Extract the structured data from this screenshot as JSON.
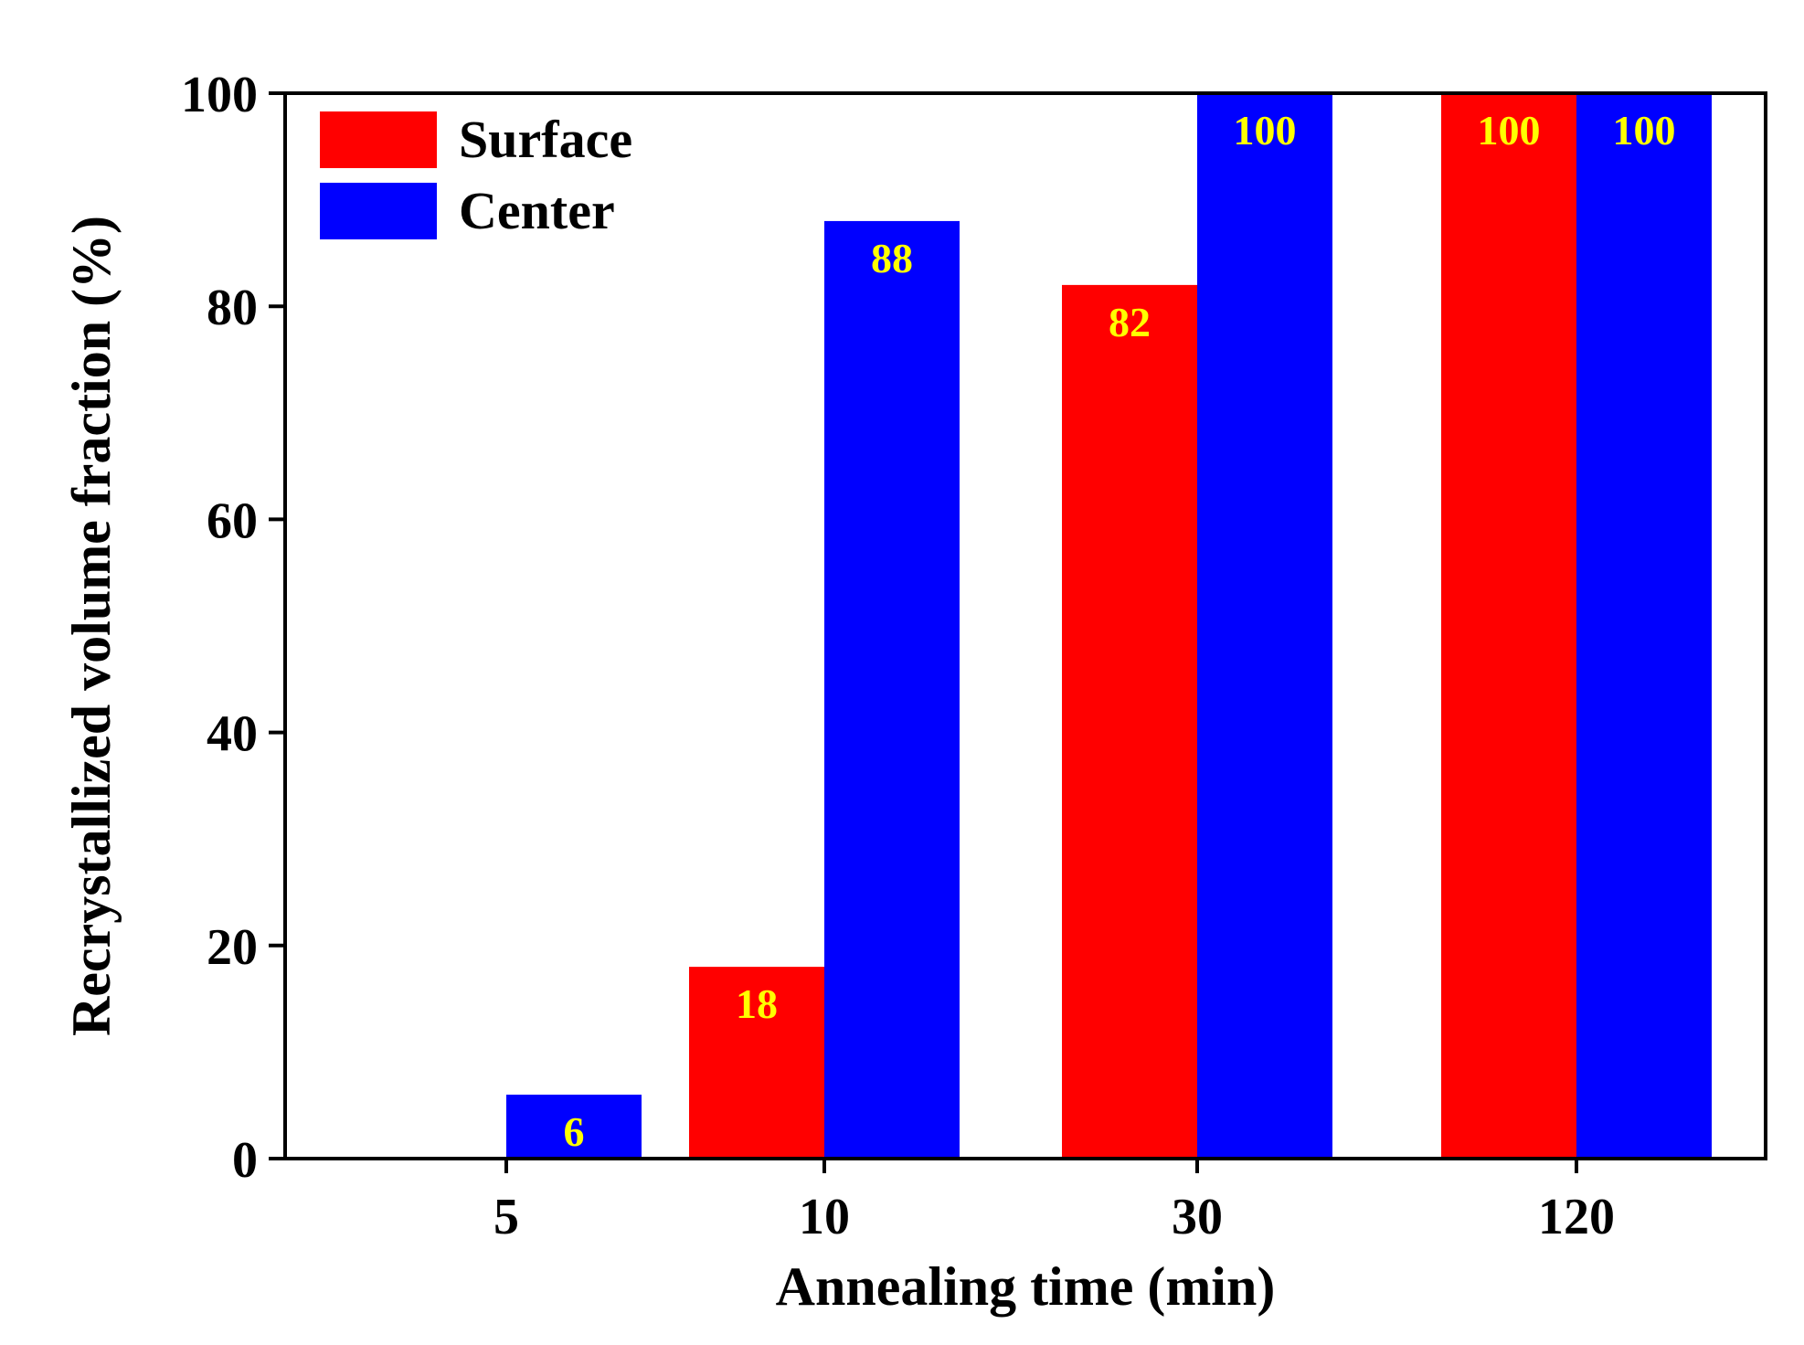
{
  "chart_data": {
    "type": "bar",
    "categories": [
      "5",
      "10",
      "30",
      "120"
    ],
    "series": [
      {
        "name": "Surface",
        "color": "#ff0000",
        "values": [
          0,
          18,
          82,
          100
        ],
        "labels": [
          "",
          "18",
          "82",
          "100"
        ]
      },
      {
        "name": "Center",
        "color": "#0000ff",
        "values": [
          6,
          88,
          100,
          100
        ],
        "labels": [
          "6",
          "88",
          "100",
          "100"
        ]
      }
    ],
    "xlabel": "Annealing time (min)",
    "ylabel": "Recrystallized volume fraction (%)",
    "ylim": [
      0,
      100
    ],
    "yticks": [
      "0",
      "20",
      "40",
      "60",
      "80",
      "100"
    ],
    "grid": false,
    "legend_position": "top-left",
    "data_label_color": "#ffff00"
  }
}
